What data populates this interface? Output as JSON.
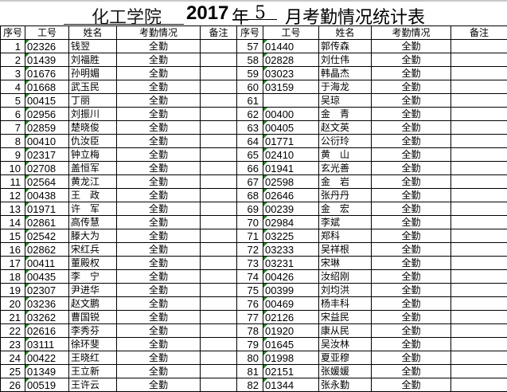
{
  "title": {
    "college": "化工学院",
    "year": "2017",
    "nian": "年",
    "month": "5",
    "rest": "月考勤情况统计表"
  },
  "headers": [
    "序号",
    "工号",
    "姓名",
    "考勤情况",
    "备注",
    "序号",
    "工号",
    "姓名",
    "考勤情况",
    "备注"
  ],
  "left_rows": [
    [
      "1",
      "02326",
      "钱翌",
      "全勤",
      ""
    ],
    [
      "2",
      "01439",
      "刘福胜",
      "全勤",
      ""
    ],
    [
      "3",
      "01676",
      "孙明媚",
      "全勤",
      ""
    ],
    [
      "4",
      "01668",
      "武玉民",
      "全勤",
      ""
    ],
    [
      "5",
      "00415",
      "丁丽",
      "全勤",
      ""
    ],
    [
      "6",
      "02956",
      "刘振川",
      "全勤",
      ""
    ],
    [
      "7",
      "02859",
      "楚晓俊",
      "全勤",
      ""
    ],
    [
      "8",
      "00410",
      "仇汝臣",
      "全勤",
      ""
    ],
    [
      "9",
      "02317",
      "钟立梅",
      "全勤",
      ""
    ],
    [
      "10",
      "02708",
      "盖恒军",
      "全勤",
      ""
    ],
    [
      "11",
      "02564",
      "黄龙江",
      "全勤",
      ""
    ],
    [
      "12",
      "00438",
      "王　政",
      "全勤",
      ""
    ],
    [
      "13",
      "01971",
      "许　军",
      "全勤",
      ""
    ],
    [
      "14",
      "02861",
      "高传慧",
      "全勤",
      ""
    ],
    [
      "15",
      "02542",
      "滕大为",
      "全勤",
      ""
    ],
    [
      "16",
      "02862",
      "宋红兵",
      "全勤",
      ""
    ],
    [
      "17",
      "00411",
      "董殿权",
      "全勤",
      ""
    ],
    [
      "18",
      "00435",
      "李　宁",
      "全勤",
      ""
    ],
    [
      "19",
      "02307",
      "尹进华",
      "全勤",
      ""
    ],
    [
      "20",
      "03236",
      "赵文鹏",
      "全勤",
      ""
    ],
    [
      "21",
      "03262",
      "曹国锐",
      "全勤",
      ""
    ],
    [
      "22",
      "02616",
      "李秀芬",
      "全勤",
      ""
    ],
    [
      "23",
      "03111",
      "徐环斐",
      "全勤",
      ""
    ],
    [
      "24",
      "00422",
      "王晓红",
      "全勤",
      ""
    ],
    [
      "25",
      "01349",
      "王立新",
      "全勤",
      ""
    ],
    [
      "26",
      "00519",
      "王许云",
      "全勤",
      ""
    ]
  ],
  "right_rows": [
    [
      "57",
      "01440",
      "郭传森",
      "全勤",
      ""
    ],
    [
      "58",
      "02828",
      "刘仕伟",
      "全勤",
      ""
    ],
    [
      "59",
      "03023",
      "韩晶杰",
      "全勤",
      ""
    ],
    [
      "60",
      "03159",
      "于海龙",
      "全勤",
      ""
    ],
    [
      "61",
      "",
      "吴琼",
      "全勤",
      ""
    ],
    [
      "62",
      "00400",
      "金　青",
      "全勤",
      ""
    ],
    [
      "63",
      "00405",
      "赵文英",
      "全勤",
      ""
    ],
    [
      "64",
      "01771",
      "公衍玲",
      "全勤",
      ""
    ],
    [
      "65",
      "02410",
      "黄　山",
      "全勤",
      ""
    ],
    [
      "66",
      "01941",
      "玄光善",
      "全勤",
      ""
    ],
    [
      "67",
      "02598",
      "金　岩",
      "全勤",
      ""
    ],
    [
      "68",
      "02646",
      "张丹丹",
      "全勤",
      ""
    ],
    [
      "69",
      "00239",
      "金　宏",
      "全勤",
      ""
    ],
    [
      "70",
      "02984",
      "李斌",
      "全勤",
      ""
    ],
    [
      "71",
      "03225",
      "郑科",
      "全勤",
      ""
    ],
    [
      "72",
      "03233",
      "吴祥根",
      "全勤",
      ""
    ],
    [
      "73",
      "03231",
      "宋琳",
      "全勤",
      ""
    ],
    [
      "74",
      "00426",
      "汝绍刚",
      "全勤",
      ""
    ],
    [
      "75",
      "00399",
      "刘均洪",
      "全勤",
      ""
    ],
    [
      "76",
      "00469",
      "杨丰科",
      "全勤",
      ""
    ],
    [
      "77",
      "02126",
      "宋益民",
      "全勤",
      ""
    ],
    [
      "78",
      "01920",
      "康从民",
      "全勤",
      ""
    ],
    [
      "79",
      "01645",
      "吴汝林",
      "全勤",
      ""
    ],
    [
      "80",
      "01998",
      "夏亚穆",
      "全勤",
      ""
    ],
    [
      "81",
      "02151",
      "张媛媛",
      "全勤",
      ""
    ],
    [
      "82",
      "01344",
      "张永勤",
      "全勤",
      ""
    ]
  ]
}
